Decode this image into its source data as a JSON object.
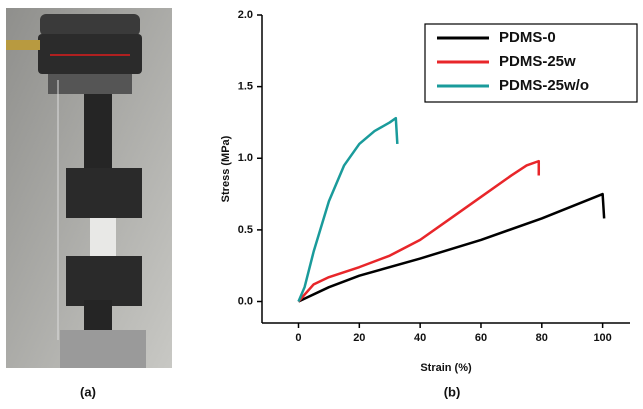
{
  "panel_labels": [
    "(a)",
    "(b)"
  ],
  "chart_data": {
    "type": "line",
    "xlabel": "Strain (%)",
    "ylabel": "Stress (MPa)",
    "xlim": [
      -12,
      109
    ],
    "ylim": [
      -0.15,
      2.0
    ],
    "xticks": [
      0,
      20,
      40,
      60,
      80,
      100
    ],
    "yticks": [
      {
        "value": 0,
        "label": "0.0"
      },
      {
        "value": 0.5,
        "label": "0.5"
      },
      {
        "value": 1,
        "label": "1.0"
      },
      {
        "value": 1.5,
        "label": "1.5"
      },
      {
        "value": 2,
        "label": "2.0"
      }
    ],
    "legend": "upper right",
    "series": [
      {
        "name": "PDMS-0",
        "color": "#000000",
        "x": [
          0,
          10,
          20,
          40,
          60,
          80,
          100,
          100.5
        ],
        "values": [
          0,
          0.1,
          0.18,
          0.3,
          0.43,
          0.58,
          0.75,
          0.58
        ]
      },
      {
        "name": "PDMS-25w",
        "color": "#e8262a",
        "x": [
          0,
          5,
          10,
          20,
          30,
          40,
          50,
          60,
          70,
          75,
          79,
          79
        ],
        "values": [
          0,
          0.12,
          0.17,
          0.24,
          0.32,
          0.43,
          0.58,
          0.73,
          0.88,
          0.95,
          0.98,
          0.88
        ]
      },
      {
        "name": "PDMS-25w/o",
        "color": "#1a9b9b",
        "x": [
          0,
          2,
          5,
          10,
          15,
          20,
          25,
          30,
          32,
          32.5
        ],
        "values": [
          0,
          0.1,
          0.35,
          0.7,
          0.95,
          1.1,
          1.19,
          1.25,
          1.28,
          1.1
        ]
      }
    ]
  }
}
